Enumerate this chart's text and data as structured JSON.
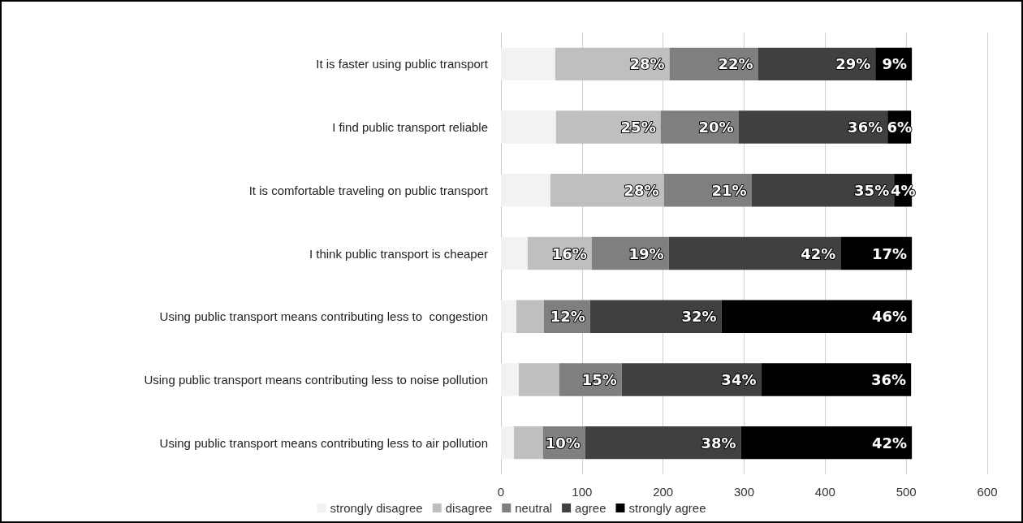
{
  "chart_data": {
    "type": "bar",
    "orientation": "horizontal",
    "stacked": true,
    "categories": [
      "It is faster using public transport",
      "I find public transport reliable",
      "It is comfortable traveling on public transport",
      "I think public transport is cheaper",
      "Using public transport means contributing less to  congestion",
      "Using public transport means contributing less to noise pollution",
      "Using public transport means contributing less to air pollution"
    ],
    "series": [
      {
        "name": "strongly disagree",
        "color": "#f2f2f2",
        "values": [
          67,
          68,
          61,
          33,
          19,
          22,
          16
        ]
      },
      {
        "name": "disagree",
        "color": "#bfbfbf",
        "values": [
          141,
          129,
          140,
          79,
          34,
          50,
          36
        ]
      },
      {
        "name": "neutral",
        "color": "#7f7f7f",
        "values": [
          109,
          96,
          108,
          95,
          57,
          77,
          52
        ]
      },
      {
        "name": "agree",
        "color": "#404040",
        "values": [
          145,
          184,
          176,
          212,
          162,
          172,
          192
        ]
      },
      {
        "name": "strongly agree",
        "color": "#000000",
        "values": [
          45,
          29,
          22,
          88,
          235,
          185,
          211
        ]
      }
    ],
    "annotations": [
      {
        "text": "28%",
        "x": 208,
        "y": "It is faster using public transport"
      },
      {
        "text": "22%",
        "x": 317,
        "y": "It is faster using public transport"
      },
      {
        "text": "29%",
        "x": 462,
        "y": "It is faster using public transport"
      },
      {
        "text": "9%",
        "x": 507,
        "y": "It is faster using public transport"
      },
      {
        "text": "25%",
        "x": 197,
        "y": "I find public transport reliable"
      },
      {
        "text": "20%",
        "x": 293,
        "y": "I find public transport reliable"
      },
      {
        "text": "36%",
        "x": 477,
        "y": "I find public transport reliable"
      },
      {
        "text": "6%",
        "x": 506,
        "y": "I find public transport reliable"
      },
      {
        "text": "28%",
        "x": 201,
        "y": "It is comfortable traveling on public transport"
      },
      {
        "text": "21%",
        "x": 309,
        "y": "It is comfortable traveling on public transport"
      },
      {
        "text": "35%",
        "x": 485,
        "y": "It is comfortable traveling on public transport"
      },
      {
        "text": "4%",
        "x": 507,
        "y": "It is comfortable traveling on public transport"
      },
      {
        "text": "16%",
        "x": 112,
        "y": "I think public transport is cheaper"
      },
      {
        "text": "19%",
        "x": 207,
        "y": "I think public transport is cheaper"
      },
      {
        "text": "42%",
        "x": 419,
        "y": "I think public transport is cheaper"
      },
      {
        "text": "17%",
        "x": 507,
        "y": "I think public transport is cheaper"
      },
      {
        "text": "12%",
        "x": 110,
        "y": "Using public transport means contributing less to  congestion"
      },
      {
        "text": "32%",
        "x": 272,
        "y": "Using public transport means contributing less to  congestion"
      },
      {
        "text": "46%",
        "x": 507,
        "y": "Using public transport means contributing less to  congestion"
      },
      {
        "text": "15%",
        "x": 149,
        "y": "Using public transport means contributing less to noise pollution"
      },
      {
        "text": "34%",
        "x": 321,
        "y": "Using public transport means contributing less to noise pollution"
      },
      {
        "text": "36%",
        "x": 506,
        "y": "Using public transport means contributing less to noise pollution"
      },
      {
        "text": "10%",
        "x": 104,
        "y": "Using public transport means contributing less to air pollution"
      },
      {
        "text": "38%",
        "x": 296,
        "y": "Using public transport means contributing less to air pollution"
      },
      {
        "text": "42%",
        "x": 507,
        "y": "Using public transport means contributing less to air pollution"
      }
    ],
    "xlim": [
      0,
      600
    ],
    "xticks": [
      0,
      100,
      200,
      300,
      400,
      500,
      600
    ],
    "grid": "x",
    "legend": "bottom"
  }
}
